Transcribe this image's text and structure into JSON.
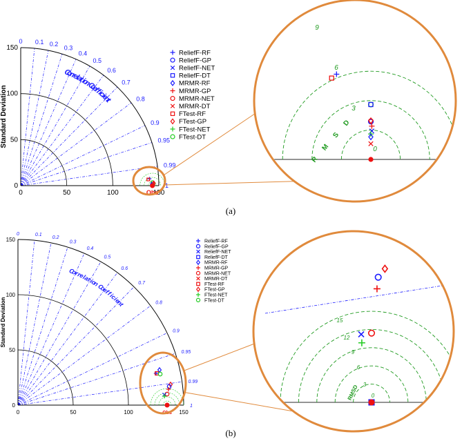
{
  "panel_labels": [
    "(a)",
    "(b)"
  ],
  "colors": {
    "blue": "#1a1aff",
    "red": "#ee1111",
    "green": "#22cc22",
    "orange": "#e08a3c",
    "rms_green": "#1f9a1f",
    "axis": "#000000"
  },
  "chart_data": [
    {
      "type": "scatter",
      "subtype": "taylor-diagram",
      "panel": "(a)",
      "ylabel": "Standard Deviation",
      "arc_label": "Correlation Coefficient",
      "obs_label": "Obs",
      "std_ticks": [
        0,
        50,
        100,
        150
      ],
      "std_arcs": [
        50,
        100,
        150
      ],
      "std_max": 150,
      "corr_ticks": [
        "0",
        "0.1",
        "0.2",
        "0.3",
        "0.4",
        "0.5",
        "0.6",
        "0.7",
        "0.8",
        "0.9",
        "0.95",
        "0.99",
        "1"
      ],
      "corr_values": [
        0,
        0.1,
        0.2,
        0.3,
        0.4,
        0.5,
        0.6,
        0.7,
        0.8,
        0.9,
        0.95,
        0.99,
        1
      ],
      "rmsd_contours": [
        3,
        6,
        9
      ],
      "rmsd_text": "R M S D",
      "obs": {
        "std": 143,
        "corr": 1.0
      },
      "legend": [
        {
          "name": "ReliefF-RF",
          "marker": "plus",
          "color": "#1a1aff"
        },
        {
          "name": "ReliefF-GP",
          "marker": "circle",
          "color": "#1a1aff"
        },
        {
          "name": "ReliefF-NET",
          "marker": "x",
          "color": "#1a1aff"
        },
        {
          "name": "ReliefF-DT",
          "marker": "square",
          "color": "#1a1aff"
        },
        {
          "name": "MRMR-RF",
          "marker": "diamond",
          "color": "#1a1aff"
        },
        {
          "name": "MRMR-GP",
          "marker": "plus",
          "color": "#ee1111"
        },
        {
          "name": "MRMR-NET",
          "marker": "circle",
          "color": "#ee1111"
        },
        {
          "name": "MRMR-DT",
          "marker": "x",
          "color": "#ee1111"
        },
        {
          "name": "FTest-RF",
          "marker": "square",
          "color": "#ee1111"
        },
        {
          "name": "FTest-GP",
          "marker": "diamond",
          "color": "#ee1111"
        },
        {
          "name": "FTest-NET",
          "marker": "plus",
          "color": "#22cc22"
        },
        {
          "name": "FTest-DT",
          "marker": "circle",
          "color": "#22cc22"
        }
      ],
      "zoom_points": [
        {
          "name": "ReliefF-RF",
          "x": -3.5,
          "y": 8.7
        },
        {
          "name": "FTest-RF",
          "x": -4.0,
          "y": 8.3
        },
        {
          "name": "FTest-DT",
          "x": 0.0,
          "y": 5.6
        },
        {
          "name": "ReliefF-DT",
          "x": 0.0,
          "y": 5.6
        },
        {
          "name": "MRMR-NET",
          "x": 0.0,
          "y": 3.9
        },
        {
          "name": "ReliefF-GP",
          "x": 0.0,
          "y": 3.85
        },
        {
          "name": "FTest-GP",
          "x": 0.0,
          "y": 3.95
        },
        {
          "name": "MRMR-GP",
          "x": 0.1,
          "y": 3.4
        },
        {
          "name": "ReliefF-NET",
          "x": 0.1,
          "y": 2.9
        },
        {
          "name": "FTest-NET",
          "x": 0.0,
          "y": 2.6
        },
        {
          "name": "MRMR-RF",
          "x": 0.0,
          "y": 2.3
        },
        {
          "name": "MRMR-DT",
          "x": 0.0,
          "y": 1.6
        }
      ],
      "zoom_obs": {
        "x": 0,
        "y": 0
      },
      "zoom_labels": [
        "9",
        "6",
        "3",
        "0"
      ]
    },
    {
      "type": "scatter",
      "subtype": "taylor-diagram",
      "panel": "(b)",
      "ylabel": "Standard Deviation",
      "arc_label": "Correlation Coefficient",
      "obs_label": "Obs",
      "std_ticks": [
        0,
        50,
        100,
        150
      ],
      "std_arcs": [
        50,
        100,
        150
      ],
      "std_max": 150,
      "corr_ticks": [
        "0",
        "0.1",
        "0.2",
        "0.3",
        "0.4",
        "0.5",
        "0.6",
        "0.7",
        "0.8",
        "0.9",
        "0.95",
        "0.99",
        "1"
      ],
      "corr_values": [
        0,
        0.1,
        0.2,
        0.3,
        0.4,
        0.5,
        0.6,
        0.7,
        0.8,
        0.9,
        0.95,
        0.99,
        1
      ],
      "rmsd_contours": [
        3,
        6,
        9,
        12,
        15
      ],
      "rmsd_text": "RMSD",
      "obs": {
        "std": 135,
        "corr": 1.0
      },
      "legend": [
        {
          "name": "ReliefF-RF",
          "marker": "plus",
          "color": "#1a1aff"
        },
        {
          "name": "ReliefF-GP",
          "marker": "circle",
          "color": "#1a1aff"
        },
        {
          "name": "ReliefF-NET",
          "marker": "x",
          "color": "#1a1aff"
        },
        {
          "name": "ReliefF-DT",
          "marker": "square",
          "color": "#1a1aff"
        },
        {
          "name": "MRMR-RF",
          "marker": "diamond",
          "color": "#1a1aff"
        },
        {
          "name": "MRMR-GP",
          "marker": "plus",
          "color": "#ee1111"
        },
        {
          "name": "MRMR-NET",
          "marker": "circle",
          "color": "#ee1111"
        },
        {
          "name": "MRMR-DT",
          "marker": "x",
          "color": "#ee1111"
        },
        {
          "name": "FTest-RF",
          "marker": "square",
          "color": "#ee1111"
        },
        {
          "name": "FTest-GP",
          "marker": "diamond",
          "color": "#ee1111"
        },
        {
          "name": "FTest-NET",
          "marker": "plus",
          "color": "#22cc22"
        },
        {
          "name": "FTest-DT",
          "marker": "circle",
          "color": "#22cc22"
        }
      ],
      "zoom_points": [
        {
          "name": "ReliefF-RF",
          "x": -7.0,
          "y": 33.5
        },
        {
          "name": "FTest-RF",
          "x": -6.6,
          "y": 33.9
        },
        {
          "name": "MRMR-RF",
          "x": -4.1,
          "y": 36.7
        },
        {
          "name": "FTest-DT",
          "x": -4.3,
          "y": 31.6
        },
        {
          "name": "MRMR-DT",
          "x": -4.3,
          "y": 31.6
        },
        {
          "name": "ReliefF-GP",
          "x": 1.1,
          "y": 20.6
        },
        {
          "name": "FTest-GP",
          "x": 2.2,
          "y": 22.0
        },
        {
          "name": "MRMR-GP",
          "x": 0.9,
          "y": 18.7
        },
        {
          "name": "ReliefF-NET",
          "x": -1.7,
          "y": 11.2
        },
        {
          "name": "MRMR-NET",
          "x": 0.0,
          "y": 11.4
        },
        {
          "name": "FTest-NET",
          "x": -1.6,
          "y": 9.8
        },
        {
          "name": "ReliefF-DT",
          "x": 0.0,
          "y": 0.0
        }
      ],
      "zoom_obs": {
        "x": 0,
        "y": 0
      },
      "zoom_labels": [
        "15",
        "12",
        "9",
        "6",
        "3",
        "0"
      ]
    }
  ]
}
